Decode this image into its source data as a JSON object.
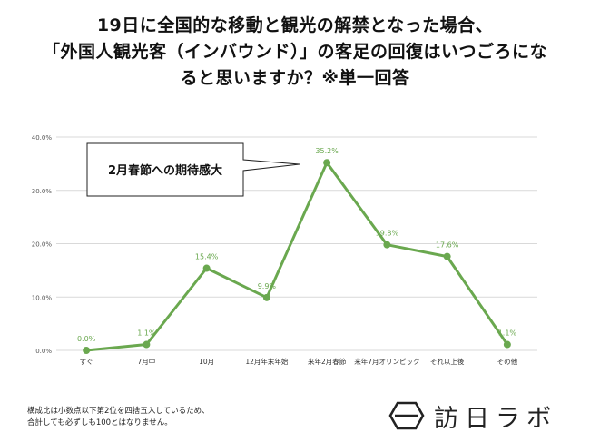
{
  "title_lines": [
    "19日に全国的な移動と観光の解禁となった場合、",
    "「外国人観光客（インバウンド）」の客足の回復はいつごろにな",
    "ると思いますか？※単一回答"
  ],
  "callout": "2月春節への期待感大",
  "footnote_lines": [
    "構成比は小数点以下第2位を四捨五入しているため、",
    "合計しても必ずしも100とはなりません。"
  ],
  "logo_text": "訪日ラボ",
  "colors": {
    "line": "#6aa84f",
    "grid": "#d9d9d9",
    "label": "#6aa84f",
    "axis_text": "#555555"
  },
  "chart_data": {
    "type": "line",
    "categories": [
      "すぐ",
      "7月中",
      "10月",
      "12月年末年始",
      "来年2月春節",
      "来年7月オリンピック",
      "それ以上後",
      "その他"
    ],
    "values": [
      0.0,
      1.1,
      15.4,
      9.9,
      35.2,
      19.8,
      17.6,
      1.1
    ],
    "data_labels": [
      "0.0%",
      "1.1%",
      "15.4%",
      "9.9%",
      "35.2%",
      "19.8%",
      "17.6%",
      "1.1%"
    ],
    "y_ticks": [
      "0.0%",
      "10.0%",
      "20.0%",
      "30.0%",
      "40.0%"
    ],
    "ylim": [
      0,
      40
    ],
    "grid": true,
    "title": "19日に全国的な移動と観光の解禁となった場合、「外国人観光客（インバウンド）」の客足の回復はいつごろになると思いますか？※単一回答",
    "xlabel": "",
    "ylabel": ""
  }
}
